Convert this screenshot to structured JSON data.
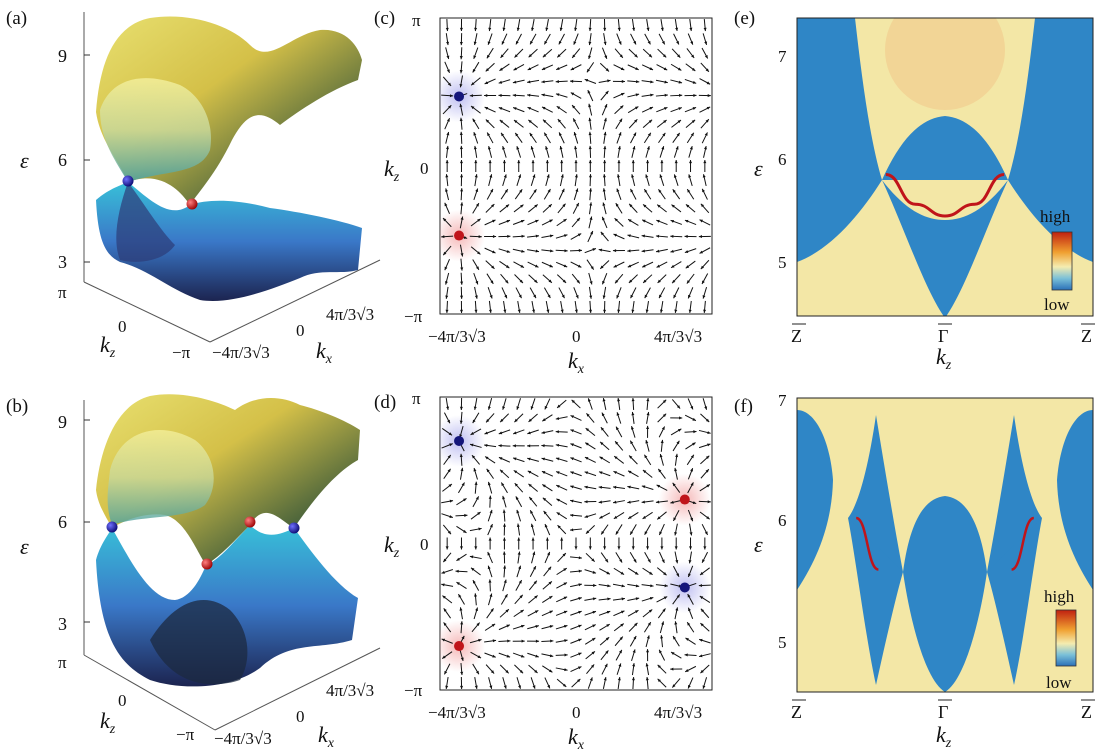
{
  "panels": {
    "a": {
      "label": "(a)",
      "zticks": [
        "9",
        "6",
        "3"
      ],
      "zlabel": "ε",
      "kz_ticks": [
        "π",
        "0",
        "−π"
      ],
      "kz_label": "k",
      "kz_sub": "z",
      "kx_ticks": [
        "−4π/3√3",
        "0",
        "4π/3√3"
      ],
      "kx_label": "k",
      "kx_sub": "x"
    },
    "b": {
      "label": "(b)",
      "zticks": [
        "9",
        "6",
        "3"
      ],
      "zlabel": "ε",
      "kz_ticks": [
        "π",
        "0",
        "−π"
      ],
      "kz_label": "k",
      "kz_sub": "z",
      "kx_ticks": [
        "−4π/3√3",
        "0",
        "4π/3√3"
      ],
      "kx_label": "k",
      "kx_sub": "x"
    },
    "c": {
      "label": "(c)",
      "yticks": [
        "π",
        "0",
        "−π"
      ],
      "xticks": [
        "−4π/3√3",
        "0",
        "4π/3√3"
      ],
      "ylabel": "k",
      "ysub": "z",
      "xlabel": "k",
      "xsub": "x"
    },
    "d": {
      "label": "(d)",
      "yticks": [
        "π",
        "0",
        "−π"
      ],
      "xticks": [
        "−4π/3√3",
        "0",
        "4π/3√3"
      ],
      "ylabel": "k",
      "ysub": "z",
      "xlabel": "k",
      "xsub": "x"
    },
    "e": {
      "label": "(e)",
      "yticks": [
        "7",
        "6",
        "5"
      ],
      "ylabel": "ε",
      "xticks": [
        "Z",
        "Γ",
        "Z"
      ],
      "xlabel": "k",
      "xsub": "z",
      "cbar_high": "high",
      "cbar_low": "low"
    },
    "f": {
      "label": "(f)",
      "yticks": [
        "7",
        "6",
        "5"
      ],
      "ylabel": "ε",
      "xticks": [
        "Z",
        "Γ",
        "Z"
      ],
      "xlabel": "k",
      "xsub": "z",
      "cbar_high": "high",
      "cbar_low": "low"
    }
  },
  "colors": {
    "positive": "#c0141a",
    "negative": "#14157a",
    "bulk": "#2f86c6",
    "gap": "#f5e6a3",
    "surface": "#c0141a"
  },
  "chart_data": [
    {
      "panel": "a",
      "type": "surface",
      "zlim": [
        3,
        9
      ],
      "x_range": [
        "−4π/3√3",
        "4π/3√3"
      ],
      "y_range": [
        "−π",
        "π"
      ],
      "nodes": [
        {
          "chirality": "negative",
          "energy": 5.6
        },
        {
          "chirality": "positive",
          "energy": 5.0
        }
      ]
    },
    {
      "panel": "b",
      "type": "surface",
      "zlim": [
        3,
        9
      ],
      "x_range": [
        "−4π/3√3",
        "4π/3√3"
      ],
      "y_range": [
        "−π",
        "π"
      ],
      "nodes": [
        {
          "chirality": "negative",
          "energy": 5.8
        },
        {
          "chirality": "positive",
          "energy": 5.0
        },
        {
          "chirality": "positive",
          "energy": 5.9
        },
        {
          "chirality": "negative",
          "energy": 5.8
        }
      ]
    },
    {
      "panel": "c",
      "type": "scatter",
      "x_unit": "4π/3√3",
      "y_unit": "π",
      "xlim": [
        -1,
        1
      ],
      "ylim": [
        -1,
        1
      ],
      "sources": [
        {
          "name": "positive",
          "x": [
            -0.86
          ],
          "y": [
            -0.47
          ]
        },
        {
          "name": "negative",
          "x": [
            -0.86
          ],
          "y": [
            0.47
          ]
        }
      ]
    },
    {
      "panel": "d",
      "type": "scatter",
      "x_unit": "4π/3√3",
      "y_unit": "π",
      "xlim": [
        -1,
        1
      ],
      "ylim": [
        -1,
        1
      ],
      "sources": [
        {
          "name": "positive",
          "x": [
            -0.86,
            0.8
          ],
          "y": [
            -0.7,
            0.3
          ]
        },
        {
          "name": "negative",
          "x": [
            -0.86,
            0.8
          ],
          "y": [
            0.7,
            -0.3
          ]
        }
      ]
    },
    {
      "panel": "e",
      "type": "heatmap",
      "ylim": [
        4.5,
        7.3
      ],
      "x_range": [
        "Z",
        "Γ",
        "Z"
      ],
      "surface_state": {
        "x": [
          -0.4,
          -0.2,
          0,
          0.2,
          0.4
        ],
        "y": [
          5.83,
          5.55,
          5.44,
          5.55,
          5.83
        ]
      }
    },
    {
      "panel": "f",
      "type": "heatmap",
      "ylim": [
        4.6,
        7.0
      ],
      "x_range": [
        "Z",
        "Γ",
        "Z"
      ],
      "surface_state": [
        {
          "x": [
            -0.6,
            -0.45
          ],
          "y": [
            6.02,
            5.6
          ]
        },
        {
          "x": [
            0.45,
            0.6
          ],
          "y": [
            5.6,
            6.02
          ]
        }
      ]
    }
  ]
}
